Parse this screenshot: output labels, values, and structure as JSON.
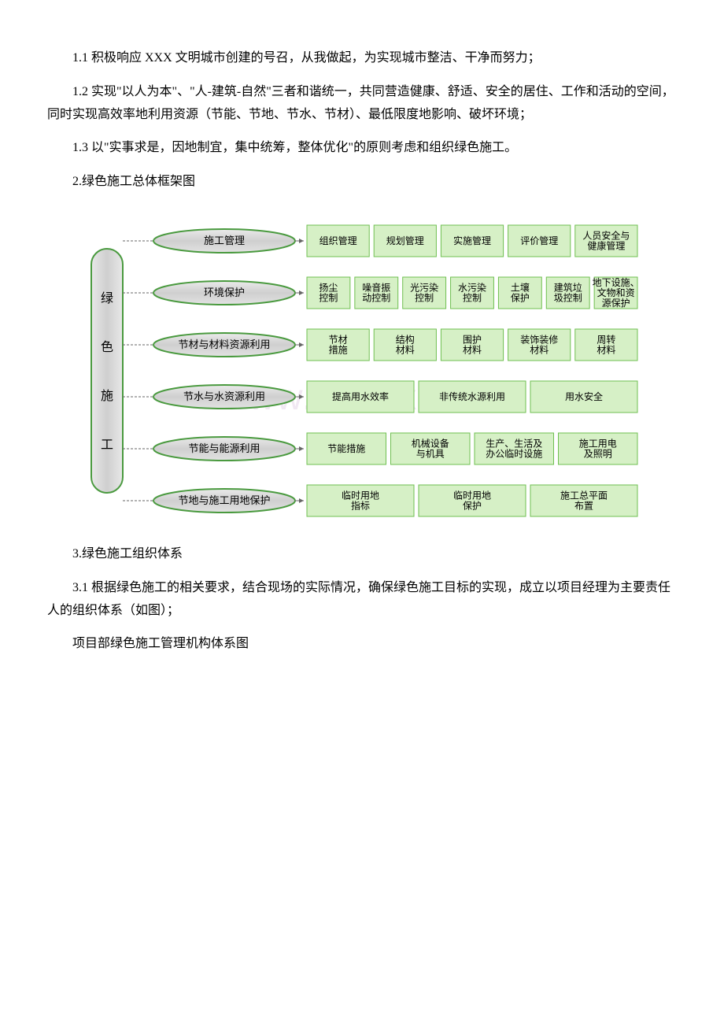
{
  "paragraphs": {
    "p1": "1.1 积极响应 XXX 文明城市创建的号召，从我做起，为实现城市整洁、干净而努力；",
    "p2": "1.2 实现\"以人为本\"、\"人-建筑-自然\"三者和谐统一，共同营造健康、舒适、安全的居住、工作和活动的空间，同时实现高效率地利用资源（节能、节地、节水、节材）、最低限度地影响、破坏环境；",
    "p3": "1.3 以\"实事求是，因地制宜，集中统筹，整体优化\"的原则考虑和组织绿色施工。",
    "p4": "2.绿色施工总体框架图",
    "p5": "3.绿色施工组织体系",
    "p6": " 3.1 根据绿色施工的相关要求，结合现场的实际情况，确保绿色施工目标的实现，成立以项目经理为主要责任人的组织体系（如图）；",
    "p7": "项目部绿色施工管理机构体系图"
  },
  "diagram": {
    "watermark": "www.bdocx.com",
    "root_label_chars": [
      "绿",
      "色",
      "施",
      "工"
    ],
    "rows": [
      {
        "pill": "施工管理",
        "boxes": [
          {
            "lines": [
              "组织管理"
            ]
          },
          {
            "lines": [
              "规划管理"
            ]
          },
          {
            "lines": [
              "实施管理"
            ]
          },
          {
            "lines": [
              "评价管理"
            ]
          },
          {
            "lines": [
              "人员安全与",
              "健康管理"
            ]
          }
        ]
      },
      {
        "pill": "环境保护",
        "boxes": [
          {
            "lines": [
              "扬尘",
              "控制"
            ]
          },
          {
            "lines": [
              "噪音振",
              "动控制"
            ]
          },
          {
            "lines": [
              "光污染",
              "控制"
            ]
          },
          {
            "lines": [
              "水污染",
              "控制"
            ]
          },
          {
            "lines": [
              "土壤",
              "保护"
            ]
          },
          {
            "lines": [
              "建筑垃",
              "圾控制"
            ]
          },
          {
            "lines": [
              "地下设施、",
              "文物和资",
              "源保护"
            ]
          }
        ]
      },
      {
        "pill": "节材与材料资源利用",
        "boxes": [
          {
            "lines": [
              "节材",
              "措施"
            ]
          },
          {
            "lines": [
              "结构",
              "材料"
            ]
          },
          {
            "lines": [
              "围护",
              "材料"
            ]
          },
          {
            "lines": [
              "装饰装修",
              "材料"
            ]
          },
          {
            "lines": [
              "周转",
              "材料"
            ]
          }
        ]
      },
      {
        "pill": "节水与水资源利用",
        "boxes": [
          {
            "lines": [
              "提高用水效率"
            ]
          },
          {
            "lines": [
              "非传统水源利用"
            ]
          },
          {
            "lines": [
              "用水安全"
            ]
          }
        ]
      },
      {
        "pill": "节能与能源利用",
        "boxes": [
          {
            "lines": [
              "节能措施"
            ]
          },
          {
            "lines": [
              "机械设备",
              "与机具"
            ]
          },
          {
            "lines": [
              "生产、生活及",
              "办公临时设施"
            ]
          },
          {
            "lines": [
              "施工用电",
              "及照明"
            ]
          }
        ]
      },
      {
        "pill": "节地与施工用地保护",
        "boxes": [
          {
            "lines": [
              "临时用地",
              "指标"
            ]
          },
          {
            "lines": [
              "临时用地",
              "保护"
            ]
          },
          {
            "lines": [
              "施工总平面",
              "布置"
            ]
          }
        ]
      }
    ],
    "colors": {
      "pill_fill": "#d7d7d7",
      "pill_stroke": "#4a9a3f",
      "root_fill": "#d7d7d7",
      "root_stroke": "#4a9a3f",
      "box_fill": "#d6f0c6",
      "box_stroke": "#6fbf50",
      "connector": "#666666"
    }
  }
}
